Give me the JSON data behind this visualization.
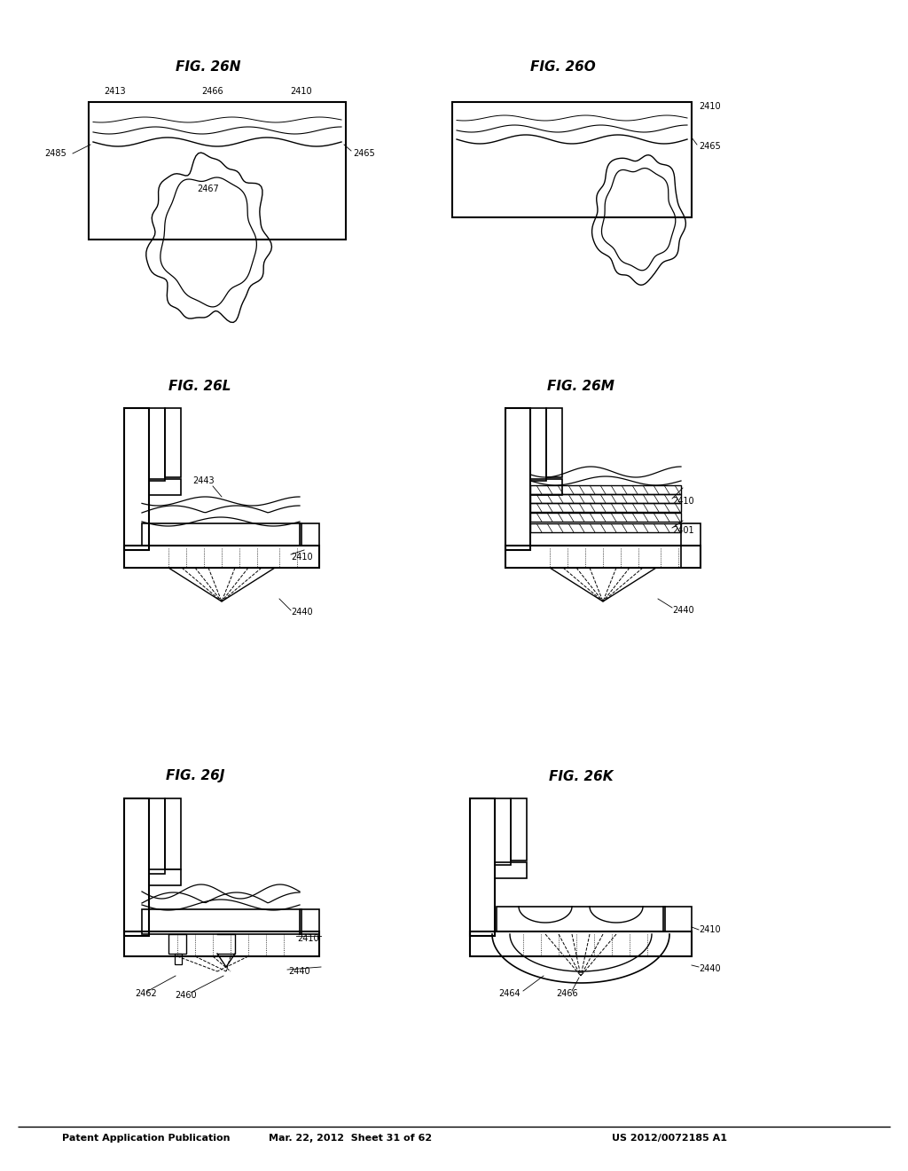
{
  "title_line1": "Patent Application Publication",
  "title_line2": "Mar. 22, 2012  Sheet 31 of 62",
  "title_line3": "US 2012/0072185 A1",
  "bg_color": "#ffffff"
}
